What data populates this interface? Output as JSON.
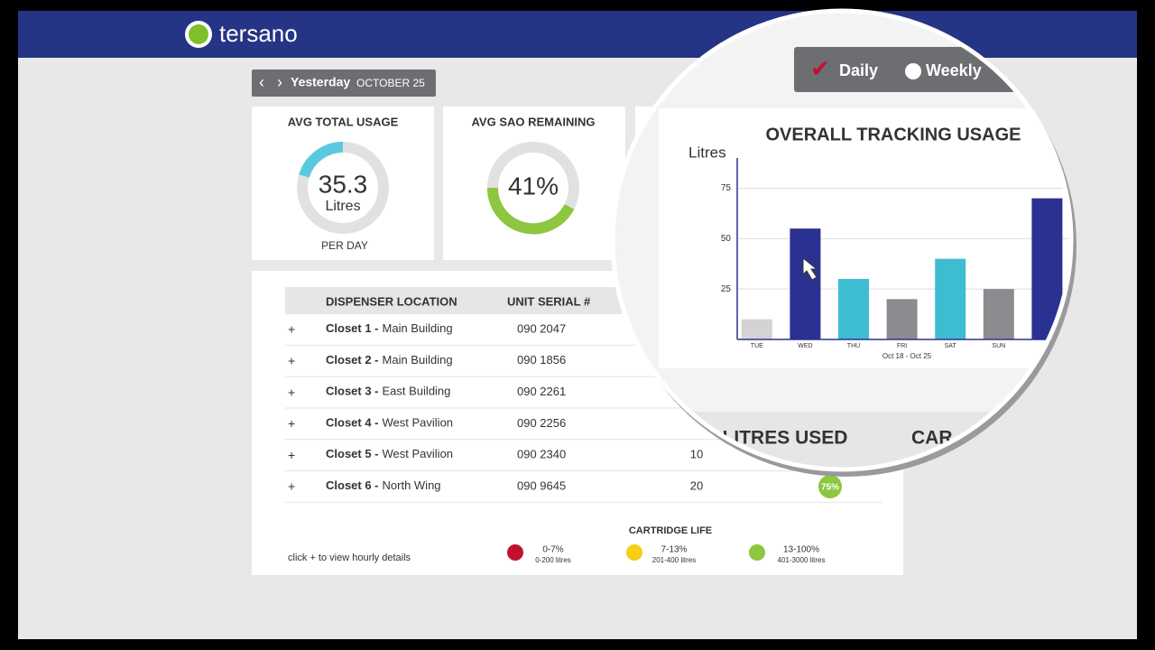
{
  "header": {
    "logo": "tersano"
  },
  "date_nav": {
    "day": "Yesterday",
    "date": "OCTOBER 25"
  },
  "cards": [
    {
      "title": "AVG TOTAL USAGE",
      "value": "35.3",
      "unit": "Litres",
      "caption": "PER DAY"
    },
    {
      "title": "AVG SAO REMAINING",
      "value": "41%"
    }
  ],
  "table": {
    "headers": [
      "DISPENSER LOCATION",
      "UNIT SERIAL #"
    ],
    "rows": [
      {
        "expand": "+",
        "name": "Closet 1 -",
        "building": "Main Building",
        "serial": "090 2047"
      },
      {
        "expand": "+",
        "name": "Closet 2 -",
        "building": "Main Building",
        "serial": "090 1856"
      },
      {
        "expand": "+",
        "name": "Closet 3 -",
        "building": "East Building",
        "serial": "090 2261"
      },
      {
        "expand": "+",
        "name": "Closet 4 -",
        "building": "West Pavilion",
        "serial": "090 2256"
      },
      {
        "expand": "+",
        "name": "Closet 5 -",
        "building": "West Pavilion",
        "serial": "090 2340",
        "litres": "10"
      },
      {
        "expand": "+",
        "name": "Closet 6 -",
        "building": "North Wing",
        "serial": "090 9645",
        "litres": "20",
        "cartridge": "75%"
      }
    ]
  },
  "legend": {
    "title": "CARTRIDGE LIFE",
    "hint": "click + to view hourly details",
    "items": [
      {
        "range": "0-7%",
        "litres": "0-200 litres"
      },
      {
        "range": "7-13%",
        "litres": "201-400 litres"
      },
      {
        "range": "13-100%",
        "litres": "401-3000 litres"
      }
    ]
  },
  "magnifier": {
    "toggle": {
      "daily": "Daily",
      "weekly": "Weekly"
    },
    "headers": [
      "LITRES USED",
      "CAR"
    ]
  },
  "chart_data": {
    "type": "bar",
    "title": "OVERALL TRACKING USAGE",
    "ylabel": "Litres",
    "xlabel": "Oct 18 - Oct 25",
    "categories": [
      "TUE",
      "WED",
      "THU",
      "FRI",
      "SAT",
      "SUN",
      null
    ],
    "values": [
      10,
      55,
      30,
      20,
      40,
      25,
      70
    ],
    "colors": [
      "#d3d3d5",
      "#2b3190",
      "#3ebcd2",
      "#8c8c90",
      "#3ebcd2",
      "#8c8c90",
      "#2b3190"
    ],
    "ylim": [
      0,
      90
    ],
    "yticks": [
      25,
      50,
      75
    ],
    "grid": true
  }
}
